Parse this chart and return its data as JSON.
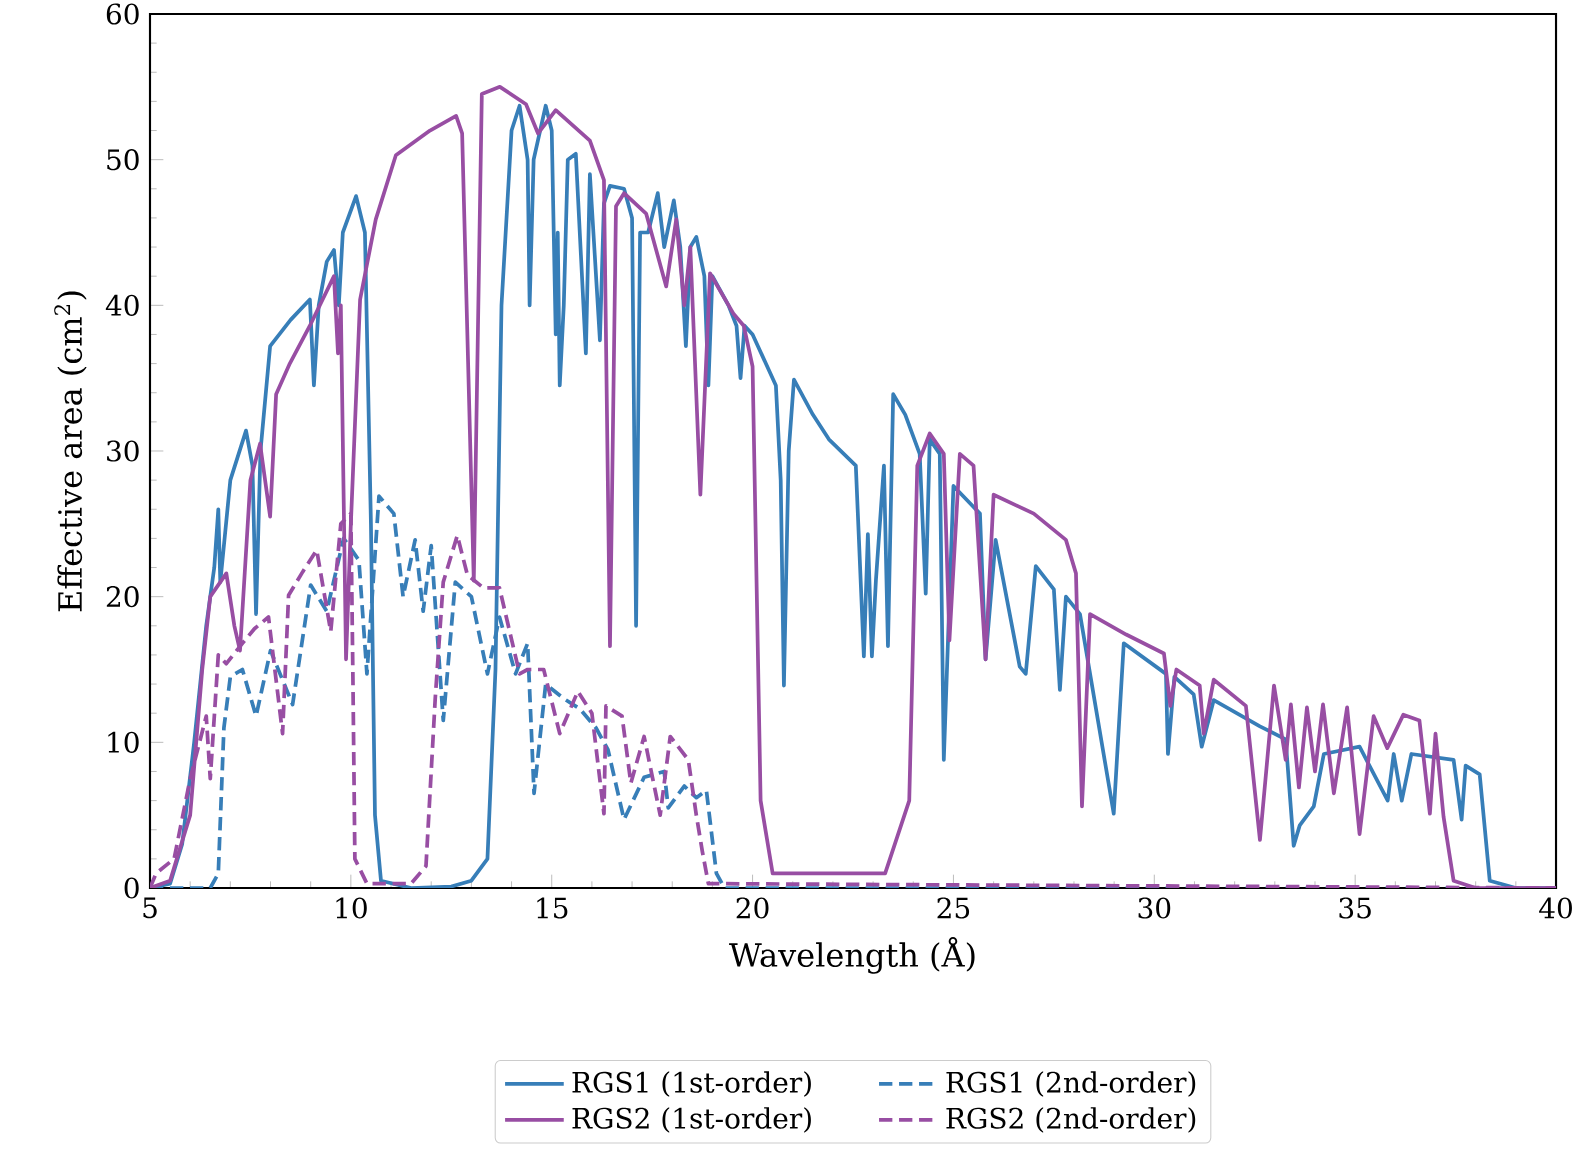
{
  "chart_data": {
    "type": "line",
    "xlabel": "Wavelength (Å)",
    "ylabel": "Effective area (cm$^{2}$)",
    "xlim": [
      5,
      40
    ],
    "ylim": [
      0,
      60
    ],
    "xticks": [
      5,
      10,
      15,
      20,
      25,
      30,
      35,
      40
    ],
    "yticks": [
      0,
      10,
      20,
      30,
      40,
      50,
      60
    ],
    "legend": "bottom",
    "series": [
      {
        "name": "RGS1 (1st-order)",
        "color": "#377eb8",
        "line_style": "solid",
        "x": [
          5,
          5.5,
          5.8,
          6.1,
          6.4,
          6.6,
          6.7,
          6.75,
          7.0,
          7.39,
          7.55,
          7.64,
          7.75,
          7.99,
          8.5,
          8.98,
          9.08,
          9.2,
          9.4,
          9.58,
          9.7,
          9.8,
          10.13,
          10.35,
          10.5,
          10.6,
          10.75,
          11.5,
          12.5,
          13.0,
          13.4,
          13.6,
          13.75,
          14.0,
          14.2,
          14.4,
          14.45,
          14.55,
          14.85,
          15.0,
          15.1,
          15.15,
          15.2,
          15.3,
          15.4,
          15.6,
          15.85,
          15.95,
          16.2,
          16.3,
          16.45,
          16.8,
          17.0,
          17.1,
          17.2,
          17.4,
          17.64,
          17.8,
          18.04,
          18.2,
          18.34,
          18.45,
          18.6,
          18.8,
          18.9,
          19.0,
          19.4,
          19.6,
          19.7,
          19.8,
          20.0,
          20.58,
          20.7,
          20.78,
          20.9,
          21.03,
          21.5,
          21.9,
          22.57,
          22.77,
          22.87,
          22.97,
          23.07,
          23.27,
          23.37,
          23.5,
          23.8,
          24.16,
          24.31,
          24.41,
          24.66,
          24.76,
          25.0,
          25.66,
          25.8,
          26.05,
          26.65,
          26.8,
          27.05,
          27.5,
          27.65,
          27.8,
          28.15,
          28.99,
          29.24,
          30.29,
          30.34,
          30.5,
          30.98,
          31.18,
          31.48,
          32.63,
          33.27,
          33.47,
          33.62,
          33.97,
          34.22,
          35.11,
          35.81,
          35.96,
          36.16,
          36.4,
          37.45,
          37.65,
          37.75,
          38.1,
          38.35,
          39.0,
          40
        ],
        "values": [
          0,
          0.3,
          3,
          10,
          18,
          22,
          26,
          21,
          28,
          31.4,
          29,
          18.8,
          30,
          37.2,
          39,
          40.4,
          34.5,
          40,
          43,
          43.8,
          40,
          45,
          47.5,
          45,
          25,
          5,
          0.5,
          0,
          0.1,
          0.5,
          2,
          15,
          40,
          52,
          53.7,
          50,
          40,
          50,
          53.7,
          52,
          38,
          45,
          34.5,
          40,
          50,
          50.4,
          36.7,
          49,
          37.6,
          47,
          48.2,
          48,
          46,
          18,
          45,
          45,
          47.7,
          44,
          47.2,
          44,
          37.2,
          44,
          44.7,
          42,
          34.5,
          42,
          40,
          38.6,
          35,
          38.6,
          38.0,
          34.5,
          28,
          13.9,
          30,
          34.9,
          32.5,
          30.8,
          29.0,
          15.9,
          24.3,
          15.9,
          21.1,
          29,
          16.6,
          33.9,
          32.5,
          29.8,
          20.2,
          30.8,
          29.8,
          8.8,
          27.6,
          25.7,
          15.7,
          23.9,
          15.2,
          14.7,
          22.1,
          20.5,
          13.6,
          20,
          18.8,
          5.1,
          16.8,
          14.7,
          9.2,
          14.5,
          13.3,
          9.7,
          12.9,
          11.1,
          10.2,
          2.9,
          4.3,
          5.6,
          9.2,
          9.7,
          6.0,
          9.2,
          6.0,
          9.2,
          8.8,
          4.7,
          8.4,
          7.8,
          0.5,
          0,
          0
        ]
      },
      {
        "name": "RGS1 (2nd-order)",
        "color": "#377eb8",
        "line_style": "dashed",
        "x": [
          5,
          6.5,
          6.7,
          6.84,
          7.0,
          7.3,
          7.64,
          8.0,
          8.55,
          9.0,
          9.4,
          9.82,
          10.2,
          10.4,
          10.7,
          11.07,
          11.3,
          11.6,
          11.8,
          12.0,
          12.3,
          12.6,
          13.0,
          13.4,
          13.7,
          14.1,
          14.4,
          14.56,
          14.85,
          15.3,
          15.7,
          16.1,
          16.4,
          16.8,
          17.3,
          17.8,
          17.9,
          18.3,
          18.6,
          18.85,
          19.1,
          19.3,
          40
        ],
        "values": [
          0,
          0,
          1,
          11,
          14.5,
          15,
          11.8,
          16.3,
          12.6,
          20.8,
          19,
          24,
          22.5,
          14.7,
          26.9,
          25.7,
          20,
          23.9,
          19,
          23.5,
          11.5,
          21,
          20,
          14.7,
          18.6,
          14.7,
          16.8,
          6.5,
          14,
          13,
          12.3,
          11,
          9.5,
          4.7,
          7.6,
          8,
          5.5,
          7,
          6.2,
          6.7,
          1,
          0,
          0
        ]
      },
      {
        "name": "RGS2 (1st-order)",
        "color": "#984ea3",
        "line_style": "solid",
        "x": [
          5,
          5.5,
          6.0,
          6.3,
          6.5,
          6.9,
          7.1,
          7.24,
          7.5,
          7.74,
          7.99,
          8.14,
          8.48,
          8.98,
          9.58,
          9.68,
          9.75,
          9.88,
          10.0,
          10.23,
          10.62,
          11.12,
          11.97,
          12.62,
          12.77,
          13.06,
          13.26,
          13.71,
          14.36,
          14.66,
          15.1,
          15.95,
          16.3,
          16.45,
          16.6,
          16.8,
          17.35,
          17.85,
          18.1,
          18.3,
          18.45,
          18.7,
          18.94,
          19.53,
          19.78,
          20.0,
          20.2,
          20.5,
          23.3,
          23.9,
          24.1,
          24.41,
          24.76,
          24.9,
          25.16,
          25.5,
          25.8,
          26.0,
          27.0,
          27.8,
          28.05,
          28.2,
          28.4,
          29.3,
          30.24,
          30.4,
          30.55,
          31.13,
          31.23,
          31.48,
          32.28,
          32.63,
          32.98,
          33.27,
          33.4,
          33.6,
          33.8,
          34.0,
          34.2,
          34.47,
          34.8,
          35.11,
          35.46,
          35.8,
          36.2,
          36.6,
          36.86,
          37.0,
          37.2,
          37.45,
          38.0,
          40
        ],
        "values": [
          0,
          0.5,
          5,
          15,
          20,
          21.6,
          18,
          16.3,
          28,
          30.5,
          25.5,
          33.9,
          36,
          38.6,
          42,
          36.7,
          40,
          15.7,
          25,
          40.4,
          45.9,
          50.3,
          52,
          53,
          51.8,
          21.1,
          54.5,
          55.0,
          53.8,
          51.8,
          53.4,
          51.3,
          48.6,
          16.6,
          46.8,
          47.7,
          46.3,
          41.3,
          45.9,
          40,
          44,
          27,
          42.2,
          39.4,
          38.6,
          35.8,
          6,
          1,
          1,
          6,
          29,
          31.2,
          29.8,
          17,
          29.8,
          29,
          15.7,
          27,
          25.7,
          23.9,
          21.6,
          5.6,
          18.8,
          17.4,
          16.1,
          12.5,
          15,
          13.9,
          10.6,
          14.3,
          12.5,
          3.3,
          13.9,
          8.8,
          12.6,
          6.9,
          12.4,
          8,
          12.6,
          6.5,
          12.4,
          3.7,
          11.8,
          9.6,
          11.9,
          11.5,
          5.1,
          10.6,
          4.9,
          0.5,
          0,
          0
        ]
      },
      {
        "name": "RGS2 (2nd-order)",
        "color": "#984ea3",
        "line_style": "dashed",
        "x": [
          5,
          5.15,
          5.6,
          6.0,
          6.4,
          6.5,
          6.7,
          6.9,
          7.3,
          7.6,
          7.95,
          8.3,
          8.45,
          8.8,
          9.15,
          9.5,
          9.75,
          10.0,
          10.05,
          10.1,
          10.4,
          11.5,
          11.87,
          12.1,
          12.3,
          12.65,
          12.9,
          13.3,
          13.7,
          14.2,
          14.4,
          14.8,
          15.2,
          15.65,
          16.0,
          16.3,
          16.35,
          16.75,
          16.97,
          17.3,
          17.7,
          17.95,
          18.4,
          18.6,
          18.75,
          18.9,
          40
        ],
        "values": [
          0,
          1,
          2,
          7.5,
          11.8,
          7.5,
          16,
          15.4,
          16.8,
          17.8,
          18.6,
          10.6,
          20.1,
          21.7,
          23.2,
          17.6,
          25,
          25.7,
          14.7,
          2,
          0.3,
          0.3,
          1.5,
          13,
          21,
          24.2,
          21.5,
          20.6,
          20.6,
          14.7,
          15,
          15,
          10.6,
          13.5,
          12,
          5.1,
          12.5,
          11.8,
          7.2,
          10.4,
          5,
          10.4,
          8.8,
          5,
          2.5,
          0.3,
          0
        ]
      }
    ]
  }
}
